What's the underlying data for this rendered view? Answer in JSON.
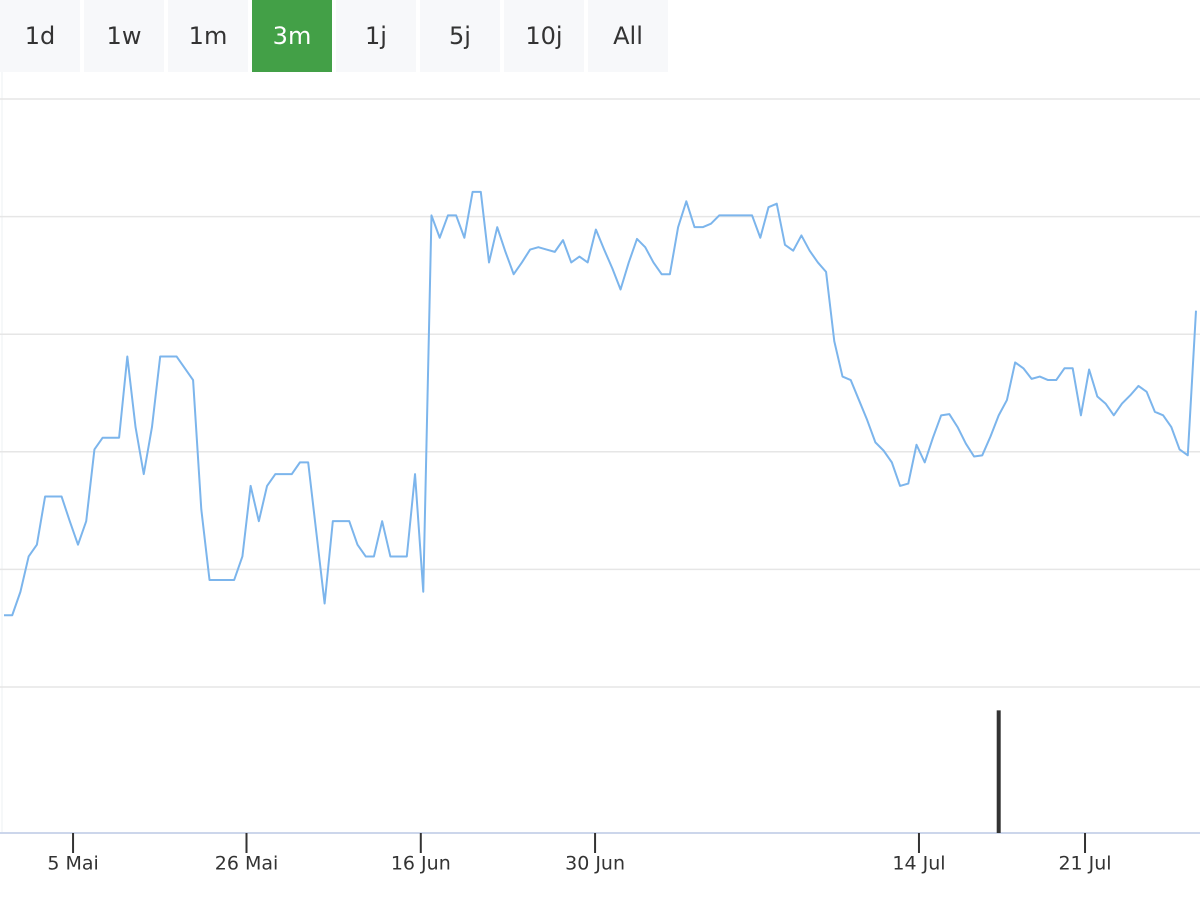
{
  "range_buttons": {
    "labels": [
      "1d",
      "1w",
      "1m",
      "3m",
      "1j",
      "5j",
      "10j",
      "All"
    ],
    "active": 3,
    "active_color": "#43a047"
  },
  "chart_data": {
    "type": "line",
    "color": "#7cb5ec",
    "grid": true,
    "x": [
      0,
      1,
      2,
      3,
      4,
      5,
      6,
      7,
      8,
      9,
      10,
      11,
      12,
      13,
      14,
      15,
      16,
      17,
      18,
      19,
      20,
      21,
      22,
      23,
      24,
      25,
      26,
      27,
      28,
      29,
      30,
      31,
      32,
      33,
      34,
      35,
      36,
      37,
      38,
      39,
      40,
      41,
      42,
      43,
      44,
      45,
      46,
      47,
      48,
      49,
      50,
      51,
      52,
      53,
      54,
      55,
      56,
      57,
      58,
      59,
      60,
      61,
      62,
      63,
      64,
      65,
      66,
      67,
      68,
      69,
      70,
      71,
      72,
      73,
      74,
      75,
      76,
      77,
      78,
      79,
      80,
      81,
      82,
      83,
      84,
      85,
      86,
      87,
      88,
      89,
      90,
      91,
      92,
      93,
      94,
      95,
      96,
      97,
      98,
      99,
      100,
      101,
      102,
      103,
      104,
      105,
      106,
      107,
      108,
      109,
      110,
      111,
      112,
      113,
      114,
      115,
      116,
      117,
      118,
      119,
      120,
      121,
      122,
      123,
      124,
      125,
      126,
      127,
      128,
      129,
      130,
      131,
      132,
      133,
      134,
      135,
      136,
      137,
      138,
      139,
      140,
      141,
      142,
      143,
      144,
      145
    ],
    "values": [
      0.61,
      0.61,
      0.81,
      1.11,
      1.21,
      1.62,
      1.62,
      1.62,
      1.41,
      1.21,
      1.41,
      2.02,
      2.12,
      2.12,
      2.12,
      2.81,
      2.21,
      1.81,
      2.21,
      2.81,
      2.81,
      2.81,
      2.71,
      2.61,
      1.51,
      0.91,
      0.91,
      0.91,
      0.91,
      1.11,
      1.71,
      1.41,
      1.71,
      1.81,
      1.81,
      1.81,
      1.91,
      1.91,
      1.31,
      0.71,
      1.41,
      1.41,
      1.41,
      1.21,
      1.11,
      1.11,
      1.41,
      1.11,
      1.11,
      1.11,
      1.81,
      0.81,
      4.01,
      3.82,
      4.01,
      4.01,
      3.82,
      4.21,
      4.21,
      3.61,
      3.91,
      3.7,
      3.51,
      3.61,
      3.72,
      3.74,
      3.72,
      3.7,
      3.8,
      3.61,
      3.66,
      3.61,
      3.89,
      3.72,
      3.56,
      3.38,
      3.61,
      3.81,
      3.74,
      3.61,
      3.51,
      3.51,
      3.91,
      4.13,
      3.91,
      3.91,
      3.94,
      4.01,
      4.01,
      4.01,
      4.01,
      4.01,
      3.82,
      4.08,
      4.11,
      3.76,
      3.71,
      3.84,
      3.71,
      3.61,
      3.53,
      2.94,
      2.64,
      2.61,
      2.44,
      2.27,
      2.08,
      2.01,
      1.91,
      1.71,
      1.73,
      2.06,
      1.91,
      2.12,
      2.31,
      2.32,
      2.21,
      2.07,
      1.96,
      1.97,
      2.13,
      2.31,
      2.44,
      2.76,
      2.71,
      2.62,
      2.64,
      2.61,
      2.61,
      2.71,
      2.71,
      2.31,
      2.7,
      2.47,
      2.41,
      2.31,
      2.41,
      2.48,
      2.56,
      2.51,
      2.34,
      2.31,
      2.21,
      2.02,
      1.97,
      3.2
    ],
    "xlim": [
      0,
      145
    ],
    "ylim": [
      0,
      5
    ],
    "yticks": [
      0,
      1,
      2,
      3,
      4,
      5
    ],
    "xticks": [
      {
        "value": 8.4,
        "label": "5 Mai"
      },
      {
        "value": 29.5,
        "label": "26 Mai"
      },
      {
        "value": 50.7,
        "label": "16 Jun"
      },
      {
        "value": 71.9,
        "label": "30 Jun"
      },
      {
        "value": 111.3,
        "label": "14 Jul"
      },
      {
        "value": 131.5,
        "label": "21 Jul"
      }
    ],
    "volume": {
      "x": [
        121
      ],
      "values": [
        0.84
      ],
      "ylim": [
        0,
        1
      ],
      "color": "#333333"
    }
  }
}
